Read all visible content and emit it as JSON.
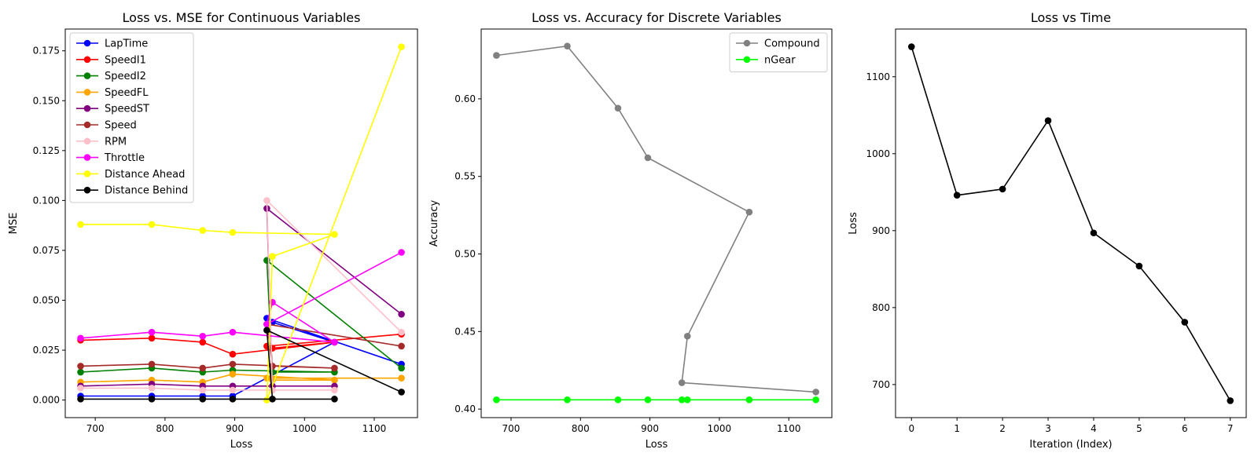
{
  "chart_data": [
    {
      "type": "line",
      "title": "Loss vs. MSE for Continuous Variables",
      "xlabel": "Loss",
      "ylabel": "MSE",
      "xlim": [
        657,
        1162
      ],
      "ylim": [
        -0.0088,
        0.1859
      ],
      "xticks": [
        "700",
        "800",
        "900",
        "1000",
        "1100"
      ],
      "yticks": [
        "0.000",
        "0.025",
        "0.050",
        "0.075",
        "0.100",
        "0.125",
        "0.150",
        "0.175"
      ],
      "legend_position": "upper-left",
      "grid": false,
      "x": [
        1139,
        946,
        954,
        1043,
        897,
        854,
        781,
        679
      ],
      "series": [
        {
          "name": "LapTime",
          "color": "#0000ff",
          "values": [
            0.018,
            0.041,
            0.039,
            0.029,
            0.002,
            0.002,
            0.002,
            0.002
          ]
        },
        {
          "name": "SpeedI1",
          "color": "#ff0000",
          "values": [
            0.033,
            0.027,
            0.026,
            0.029,
            0.023,
            0.029,
            0.031,
            0.03
          ]
        },
        {
          "name": "SpeedI2",
          "color": "#008000",
          "values": [
            0.016,
            0.07,
            0.014,
            0.014,
            0.015,
            0.014,
            0.016,
            0.014
          ]
        },
        {
          "name": "SpeedFL",
          "color": "#ffa500",
          "values": [
            0.011,
            0.011,
            0.01,
            0.01,
            0.013,
            0.009,
            0.01,
            0.009
          ]
        },
        {
          "name": "SpeedST",
          "color": "#800080",
          "values": [
            0.043,
            0.096,
            0.007,
            0.007,
            0.007,
            0.007,
            0.008,
            0.007
          ]
        },
        {
          "name": "Speed",
          "color": "#a52a2a",
          "values": [
            0.027,
            0.038,
            0.017,
            0.016,
            0.018,
            0.016,
            0.018,
            0.017
          ]
        },
        {
          "name": "RPM",
          "color": "#ffc0cb",
          "values": [
            0.034,
            0.1,
            0.005,
            0.005,
            0.005,
            0.005,
            0.006,
            0.006
          ]
        },
        {
          "name": "Throttle",
          "color": "#ff00ff",
          "values": [
            0.074,
            0.038,
            0.049,
            0.029,
            0.034,
            0.032,
            0.034,
            0.031
          ]
        },
        {
          "name": "Distance Ahead",
          "color": "#ffff00",
          "values": [
            0.177,
            0.0,
            0.072,
            0.083,
            0.084,
            0.085,
            0.088,
            0.088
          ]
        },
        {
          "name": "Distance Behind",
          "color": "#000000",
          "values": [
            0.004,
            0.035,
            0.0005,
            0.0005,
            0.0005,
            0.0005,
            0.0005,
            0.0005
          ]
        }
      ]
    },
    {
      "type": "line",
      "title": "Loss vs. Accuracy for Discrete Variables",
      "xlabel": "Loss",
      "ylabel": "Accuracy",
      "xlim": [
        657,
        1162
      ],
      "ylim": [
        0.3945,
        0.645
      ],
      "xticks": [
        "700",
        "800",
        "900",
        "1000",
        "1100"
      ],
      "yticks": [
        "0.40",
        "0.45",
        "0.50",
        "0.55",
        "0.60"
      ],
      "legend_position": "upper-right",
      "grid": false,
      "x": [
        679,
        781,
        854,
        897,
        1043,
        954,
        946,
        1139
      ],
      "series": [
        {
          "name": "Compound",
          "color": "#808080",
          "values": [
            0.628,
            0.634,
            0.594,
            0.562,
            0.527,
            0.447,
            0.417,
            0.411
          ]
        },
        {
          "name": "nGear",
          "color": "#00ff00",
          "values": [
            0.406,
            0.406,
            0.406,
            0.406,
            0.406,
            0.406,
            0.406,
            0.406
          ]
        }
      ]
    },
    {
      "type": "line",
      "title": "Loss vs Time",
      "xlabel": "Iteration (Index)",
      "ylabel": "Loss",
      "xlim": [
        -0.35,
        7.35
      ],
      "ylim": [
        657,
        1162
      ],
      "xticks": [
        "0",
        "1",
        "2",
        "3",
        "4",
        "5",
        "6",
        "7"
      ],
      "yticks": [
        "700",
        "800",
        "900",
        "1000",
        "1100"
      ],
      "grid": false,
      "x": [
        0,
        1,
        2,
        3,
        4,
        5,
        6,
        7
      ],
      "series": [
        {
          "color": "#000000",
          "values": [
            1139,
            946,
            954,
            1043,
            897,
            854,
            781,
            679
          ]
        }
      ]
    }
  ]
}
